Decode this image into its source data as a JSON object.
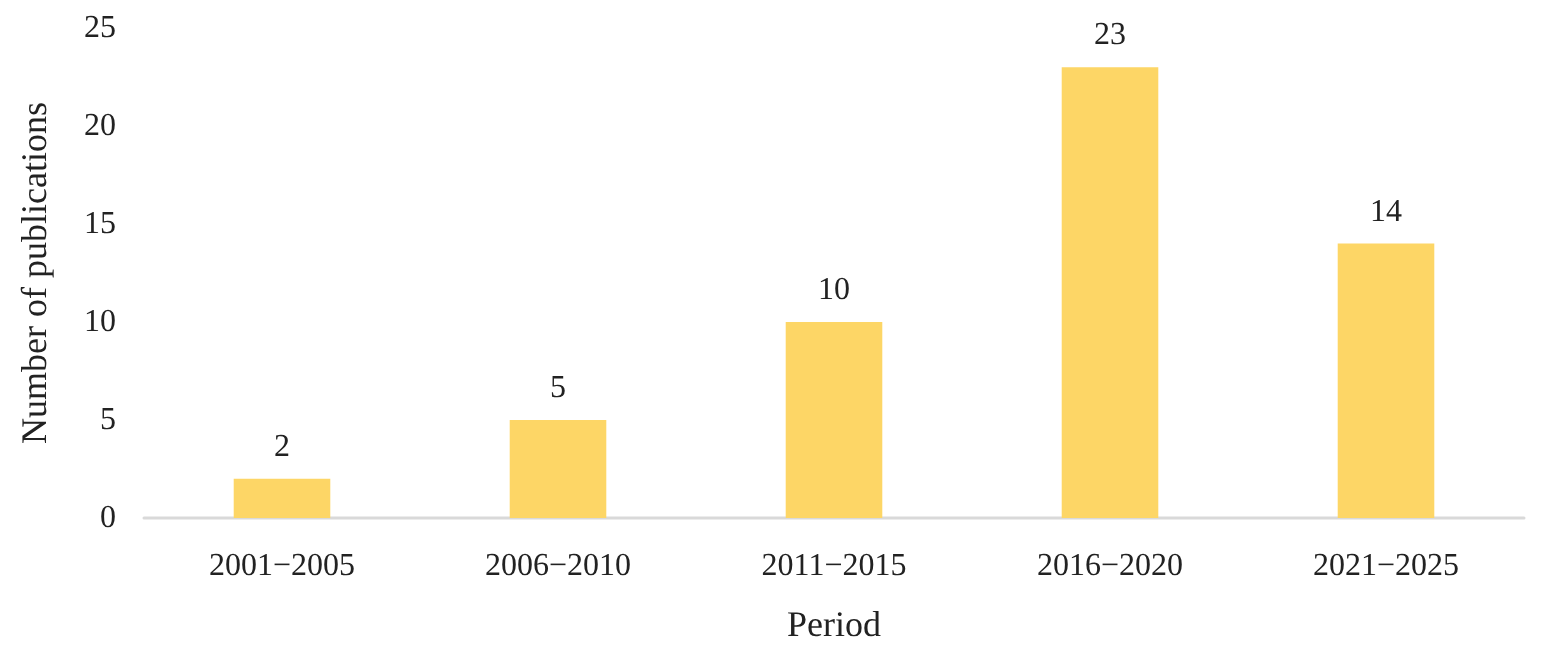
{
  "chart_data": {
    "type": "bar",
    "xlabel": "Period",
    "ylabel": "Number of publications",
    "categories": [
      "2001−2005",
      "2006−2010",
      "2011−2015",
      "2016−2020",
      "2021−2025"
    ],
    "values": [
      2,
      5,
      10,
      23,
      14
    ],
    "color": "#fdd666",
    "ylim": [
      0,
      25
    ],
    "yticks": [
      0,
      5,
      10,
      15,
      20,
      25
    ],
    "grid": false,
    "data_labels": true
  }
}
